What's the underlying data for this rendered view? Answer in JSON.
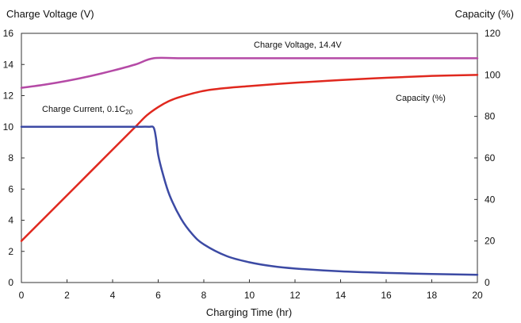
{
  "chart_data": {
    "type": "line",
    "xlabel": "Charging Time (hr)",
    "ylabel_left": "Charge Voltage (V)",
    "ylabel_right": "Capacity (%)",
    "xlim": [
      0,
      20
    ],
    "ylim_left": [
      0,
      16
    ],
    "ylim_right": [
      0,
      120
    ],
    "x_ticks": [
      0,
      2,
      4,
      6,
      8,
      10,
      12,
      14,
      16,
      18,
      20
    ],
    "y_ticks_left": [
      0,
      2,
      4,
      6,
      8,
      10,
      12,
      14,
      16
    ],
    "y_ticks_right": [
      0,
      20,
      40,
      60,
      80,
      100,
      120
    ],
    "grid": false,
    "series": [
      {
        "name": "Charge Voltage, 14.4V",
        "axis": "left",
        "color": "#b54aa6",
        "x": [
          0,
          1,
          2,
          3,
          4,
          5,
          5.8,
          7,
          10,
          15,
          20
        ],
        "y": [
          12.5,
          12.7,
          12.95,
          13.25,
          13.6,
          14.0,
          14.4,
          14.4,
          14.4,
          14.4,
          14.4
        ]
      },
      {
        "name": "Capacity (%)",
        "axis": "right",
        "color": "#e0281e",
        "x": [
          0,
          1,
          2,
          3,
          4,
          5,
          5.5,
          6,
          6.5,
          7,
          8,
          9,
          10,
          12,
          14,
          16,
          18,
          20
        ],
        "y": [
          20,
          31,
          42,
          53,
          64,
          75,
          80.5,
          84.5,
          87.5,
          89.5,
          92.3,
          93.7,
          94.6,
          96.2,
          97.5,
          98.6,
          99.5,
          100
        ]
      },
      {
        "name": "Charge Current, 0.1C",
        "name_subscript": "20",
        "axis": "left",
        "color": "#3c4aa4",
        "x": [
          0,
          2,
          4,
          5,
          5.6,
          5.8,
          5.9,
          6,
          6.2,
          6.5,
          7,
          7.5,
          8,
          9,
          10,
          11,
          12,
          14,
          16,
          18,
          20
        ],
        "y": [
          10,
          10,
          10,
          10,
          10,
          9.95,
          9.3,
          8.2,
          7.0,
          5.6,
          4.1,
          3.1,
          2.45,
          1.7,
          1.3,
          1.05,
          0.9,
          0.72,
          0.62,
          0.55,
          0.5
        ]
      }
    ]
  }
}
